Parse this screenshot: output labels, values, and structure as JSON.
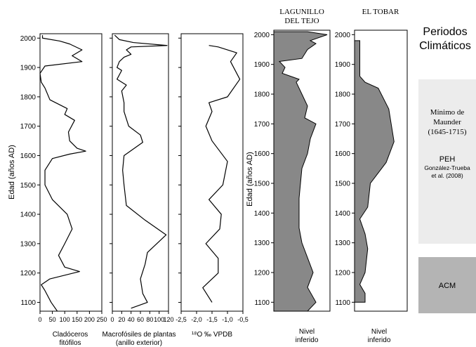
{
  "chart_data": [
    {
      "id": "cladoceros",
      "type": "line",
      "xlabel": "Cladóceros",
      "xlabel2": "fitófilos",
      "ylabel": "Edad (años AD)",
      "xlim": [
        0,
        250
      ],
      "ylim": [
        1070,
        2015
      ],
      "xticks": [
        "0",
        "50",
        "100",
        "150",
        "200",
        "250"
      ],
      "yticks": [
        "1100",
        "1200",
        "1300",
        "1400",
        "1500",
        "1600",
        "1700",
        "1800",
        "1900",
        "2000"
      ],
      "points": [
        [
          70,
          1070
        ],
        [
          45,
          1100
        ],
        [
          20,
          1140
        ],
        [
          5,
          1160
        ],
        [
          40,
          1180
        ],
        [
          160,
          1205
        ],
        [
          100,
          1220
        ],
        [
          75,
          1260
        ],
        [
          100,
          1300
        ],
        [
          130,
          1350
        ],
        [
          110,
          1400
        ],
        [
          50,
          1450
        ],
        [
          20,
          1500
        ],
        [
          20,
          1550
        ],
        [
          50,
          1590
        ],
        [
          120,
          1605
        ],
        [
          185,
          1615
        ],
        [
          150,
          1625
        ],
        [
          120,
          1650
        ],
        [
          115,
          1680
        ],
        [
          140,
          1720
        ],
        [
          100,
          1740
        ],
        [
          110,
          1760
        ],
        [
          40,
          1790
        ],
        [
          20,
          1830
        ],
        [
          5,
          1850
        ],
        [
          0,
          1880
        ],
        [
          20,
          1905
        ],
        [
          170,
          1920
        ],
        [
          130,
          1940
        ],
        [
          170,
          1960
        ],
        [
          120,
          1980
        ],
        [
          80,
          1990
        ],
        [
          10,
          2000
        ],
        [
          10,
          2010
        ]
      ]
    },
    {
      "id": "macrofosiles",
      "type": "line",
      "xlabel": "Macrofósiles de plantas",
      "xlabel2": "(anillo exterior)",
      "xlim": [
        0,
        120
      ],
      "ylim": [
        1070,
        2015
      ],
      "xticks": [
        "0",
        "20",
        "40",
        "60",
        "80",
        "100",
        "120"
      ],
      "points": [
        [
          40,
          1080
        ],
        [
          75,
          1100
        ],
        [
          65,
          1130
        ],
        [
          60,
          1180
        ],
        [
          70,
          1230
        ],
        [
          75,
          1270
        ],
        [
          115,
          1330
        ],
        [
          70,
          1380
        ],
        [
          30,
          1430
        ],
        [
          25,
          1500
        ],
        [
          22,
          1550
        ],
        [
          25,
          1600
        ],
        [
          65,
          1645
        ],
        [
          60,
          1670
        ],
        [
          35,
          1700
        ],
        [
          25,
          1750
        ],
        [
          25,
          1780
        ],
        [
          20,
          1820
        ],
        [
          30,
          1840
        ],
        [
          10,
          1860
        ],
        [
          20,
          1890
        ],
        [
          10,
          1900
        ],
        [
          15,
          1920
        ],
        [
          25,
          1935
        ],
        [
          40,
          1945
        ],
        [
          30,
          1960
        ],
        [
          40,
          1970
        ],
        [
          117,
          1975
        ],
        [
          45,
          1985
        ],
        [
          15,
          1995
        ],
        [
          5,
          2010
        ]
      ]
    },
    {
      "id": "d18o",
      "type": "line",
      "xlabel": "¹⁸O ‰ VPDB",
      "xlim": [
        -2.5,
        -0.5
      ],
      "ylim": [
        1070,
        2015
      ],
      "xticks": [
        "-2,5",
        "-2,0",
        "-1,5",
        "-1,0",
        "-0,5"
      ],
      "points": [
        [
          -1.5,
          1100
        ],
        [
          -1.8,
          1150
        ],
        [
          -1.3,
          1200
        ],
        [
          -1.3,
          1250
        ],
        [
          -1.7,
          1300
        ],
        [
          -1.25,
          1350
        ],
        [
          -1.2,
          1400
        ],
        [
          -1.6,
          1450
        ],
        [
          -1.15,
          1500
        ],
        [
          -1.0,
          1580
        ],
        [
          -1.5,
          1650
        ],
        [
          -1.7,
          1700
        ],
        [
          -1.5,
          1750
        ],
        [
          -1.6,
          1780
        ],
        [
          -1.0,
          1800
        ],
        [
          -0.6,
          1860
        ],
        [
          -0.9,
          1920
        ],
        [
          -0.7,
          1950
        ],
        [
          -1.3,
          1970
        ],
        [
          -1.6,
          1975
        ]
      ]
    },
    {
      "id": "lagunillo",
      "type": "area",
      "title": "LAGUNILLO",
      "title2": "DEL TEJO",
      "xlabel": "Nivel",
      "xlabel2": "inferido",
      "ylim": [
        1070,
        2015
      ],
      "xlim": [
        0,
        1
      ],
      "points": [
        [
          0.6,
          1070
        ],
        [
          0.75,
          1100
        ],
        [
          0.6,
          1150
        ],
        [
          0.7,
          1200
        ],
        [
          0.6,
          1250
        ],
        [
          0.5,
          1300
        ],
        [
          0.45,
          1350
        ],
        [
          0.45,
          1450
        ],
        [
          0.5,
          1550
        ],
        [
          0.6,
          1600
        ],
        [
          0.65,
          1650
        ],
        [
          0.75,
          1700
        ],
        [
          0.55,
          1720
        ],
        [
          0.6,
          1760
        ],
        [
          0.5,
          1800
        ],
        [
          0.4,
          1840
        ],
        [
          0.45,
          1850
        ],
        [
          0.15,
          1870
        ],
        [
          0.2,
          1890
        ],
        [
          0.1,
          1910
        ],
        [
          0.5,
          1920
        ],
        [
          0.6,
          1950
        ],
        [
          0.75,
          1970
        ],
        [
          0.65,
          1980
        ],
        [
          0.95,
          2000
        ],
        [
          0.6,
          2010
        ]
      ]
    },
    {
      "id": "eltobar",
      "type": "area",
      "title": "EL TOBAR",
      "xlabel": "Nivel",
      "xlabel2": "inferido",
      "ylim": [
        1070,
        2015
      ],
      "xlim": [
        0,
        1
      ],
      "points": [
        [
          0.2,
          1100
        ],
        [
          0.2,
          1130
        ],
        [
          0.1,
          1160
        ],
        [
          0.2,
          1200
        ],
        [
          0.25,
          1280
        ],
        [
          0.2,
          1330
        ],
        [
          0.1,
          1380
        ],
        [
          0.25,
          1420
        ],
        [
          0.3,
          1500
        ],
        [
          0.6,
          1570
        ],
        [
          0.75,
          1640
        ],
        [
          0.65,
          1750
        ],
        [
          0.45,
          1820
        ],
        [
          0.2,
          1840
        ],
        [
          0.1,
          1860
        ],
        [
          0.1,
          1980
        ]
      ]
    }
  ],
  "periods": {
    "title_line1": "Periodos",
    "title_line2": "Climáticos",
    "maunder_line1": "Mínimo de",
    "maunder_line2": "Maunder",
    "maunder_line3": "(1645-1715)",
    "peh": "PEH",
    "peh_ref_line1": "González-Trueba",
    "peh_ref_line2": "et al.  (2008)",
    "acm": "ACM"
  },
  "colors": {
    "fill": "#888888",
    "peh_band": "#ececec",
    "acm_band": "#b4b4b4"
  }
}
